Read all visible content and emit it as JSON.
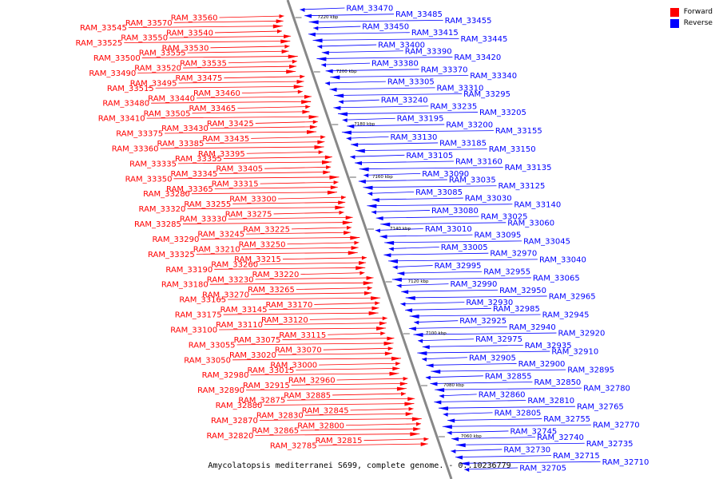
{
  "legend": {
    "forward": {
      "label": "Forward",
      "color": "#ff0000"
    },
    "reverse": {
      "label": "Reverse",
      "color": "#0000ff"
    }
  },
  "caption": "Amycolatopsis mediterranei S699, complete genome. - 0..10236779",
  "axis": {
    "ticks": [
      "7220 kbp",
      "7200 kbp",
      "7180 kbp",
      "7160 kbp",
      "7140 kbp",
      "7120 kbp",
      "7100 kbp",
      "7080 kbp",
      "7060 kbp"
    ]
  },
  "forward_genes": [
    "RAM_33560",
    "RAM_33570",
    "RAM_33545",
    "RAM_33540",
    "RAM_33550",
    "RAM_33525",
    "RAM_33530",
    "RAM_33555",
    "RAM_33500",
    "RAM_33535",
    "RAM_33520",
    "RAM_33490",
    "RAM_33475",
    "RAM_33495",
    "RAM_33515",
    "RAM_33460",
    "RAM_33440",
    "RAM_33480",
    "RAM_33465",
    "RAM_33505",
    "RAM_33410",
    "RAM_33425",
    "RAM_33430",
    "RAM_33375",
    "RAM_33435",
    "RAM_33385",
    "RAM_33360",
    "RAM_33395",
    "RAM_33355",
    "RAM_33335",
    "RAM_33405",
    "RAM_33345",
    "RAM_33350",
    "RAM_33315",
    "RAM_33365",
    "RAM_33280",
    "RAM_33300",
    "RAM_33255",
    "RAM_33320",
    "RAM_33275",
    "RAM_33330",
    "RAM_33285",
    "RAM_33225",
    "RAM_33245",
    "RAM_33290",
    "RAM_33250",
    "RAM_33210",
    "RAM_33325",
    "RAM_33215",
    "RAM_33260",
    "RAM_33190",
    "RAM_33220",
    "RAM_33230",
    "RAM_33180",
    "RAM_33265",
    "RAM_33270",
    "RAM_33165",
    "RAM_33170",
    "RAM_33145",
    "RAM_33175",
    "RAM_33120",
    "RAM_33110",
    "RAM_33100",
    "RAM_33115",
    "RAM_33075",
    "RAM_33055",
    "RAM_33070",
    "RAM_33020",
    "RAM_33050",
    "RAM_33000",
    "RAM_33015",
    "RAM_32980",
    "RAM_32960",
    "RAM_32915",
    "RAM_32890",
    "RAM_32885",
    "RAM_32875",
    "RAM_32880",
    "RAM_32845",
    "RAM_32830",
    "RAM_32870",
    "RAM_32800",
    "RAM_32865",
    "RAM_32820",
    "RAM_32815",
    "RAM_32785"
  ],
  "reverse_genes": [
    "RAM_33470",
    "RAM_33485",
    "RAM_33455",
    "RAM_33450",
    "RAM_33415",
    "RAM_33445",
    "RAM_33400",
    "RAM_33390",
    "RAM_33420",
    "RAM_33380",
    "RAM_33370",
    "RAM_33340",
    "RAM_33305",
    "RAM_33310",
    "RAM_33295",
    "RAM_33240",
    "RAM_33235",
    "RAM_33205",
    "RAM_33195",
    "RAM_33200",
    "RAM_33155",
    "RAM_33130",
    "RAM_33185",
    "RAM_33150",
    "RAM_33105",
    "RAM_33160",
    "RAM_33135",
    "RAM_33090",
    "RAM_33035",
    "RAM_33125",
    "RAM_33085",
    "RAM_33030",
    "RAM_33140",
    "RAM_33080",
    "RAM_33025",
    "RAM_33060",
    "RAM_33010",
    "RAM_33095",
    "RAM_33045",
    "RAM_33005",
    "RAM_32970",
    "RAM_33040",
    "RAM_32995",
    "RAM_32955",
    "RAM_33065",
    "RAM_32990",
    "RAM_32950",
    "RAM_32965",
    "RAM_32930",
    "RAM_32985",
    "RAM_32945",
    "RAM_32925",
    "RAM_32940",
    "RAM_32920",
    "RAM_32975",
    "RAM_32935",
    "RAM_32910",
    "RAM_32905",
    "RAM_32900",
    "RAM_32895",
    "RAM_32855",
    "RAM_32850",
    "RAM_32780",
    "RAM_32860",
    "RAM_32810",
    "RAM_32765",
    "RAM_32805",
    "RAM_32755",
    "RAM_32770",
    "RAM_32745",
    "RAM_32740",
    "RAM_32735",
    "RAM_32730",
    "RAM_32715",
    "RAM_32710",
    "RAM_32705"
  ]
}
